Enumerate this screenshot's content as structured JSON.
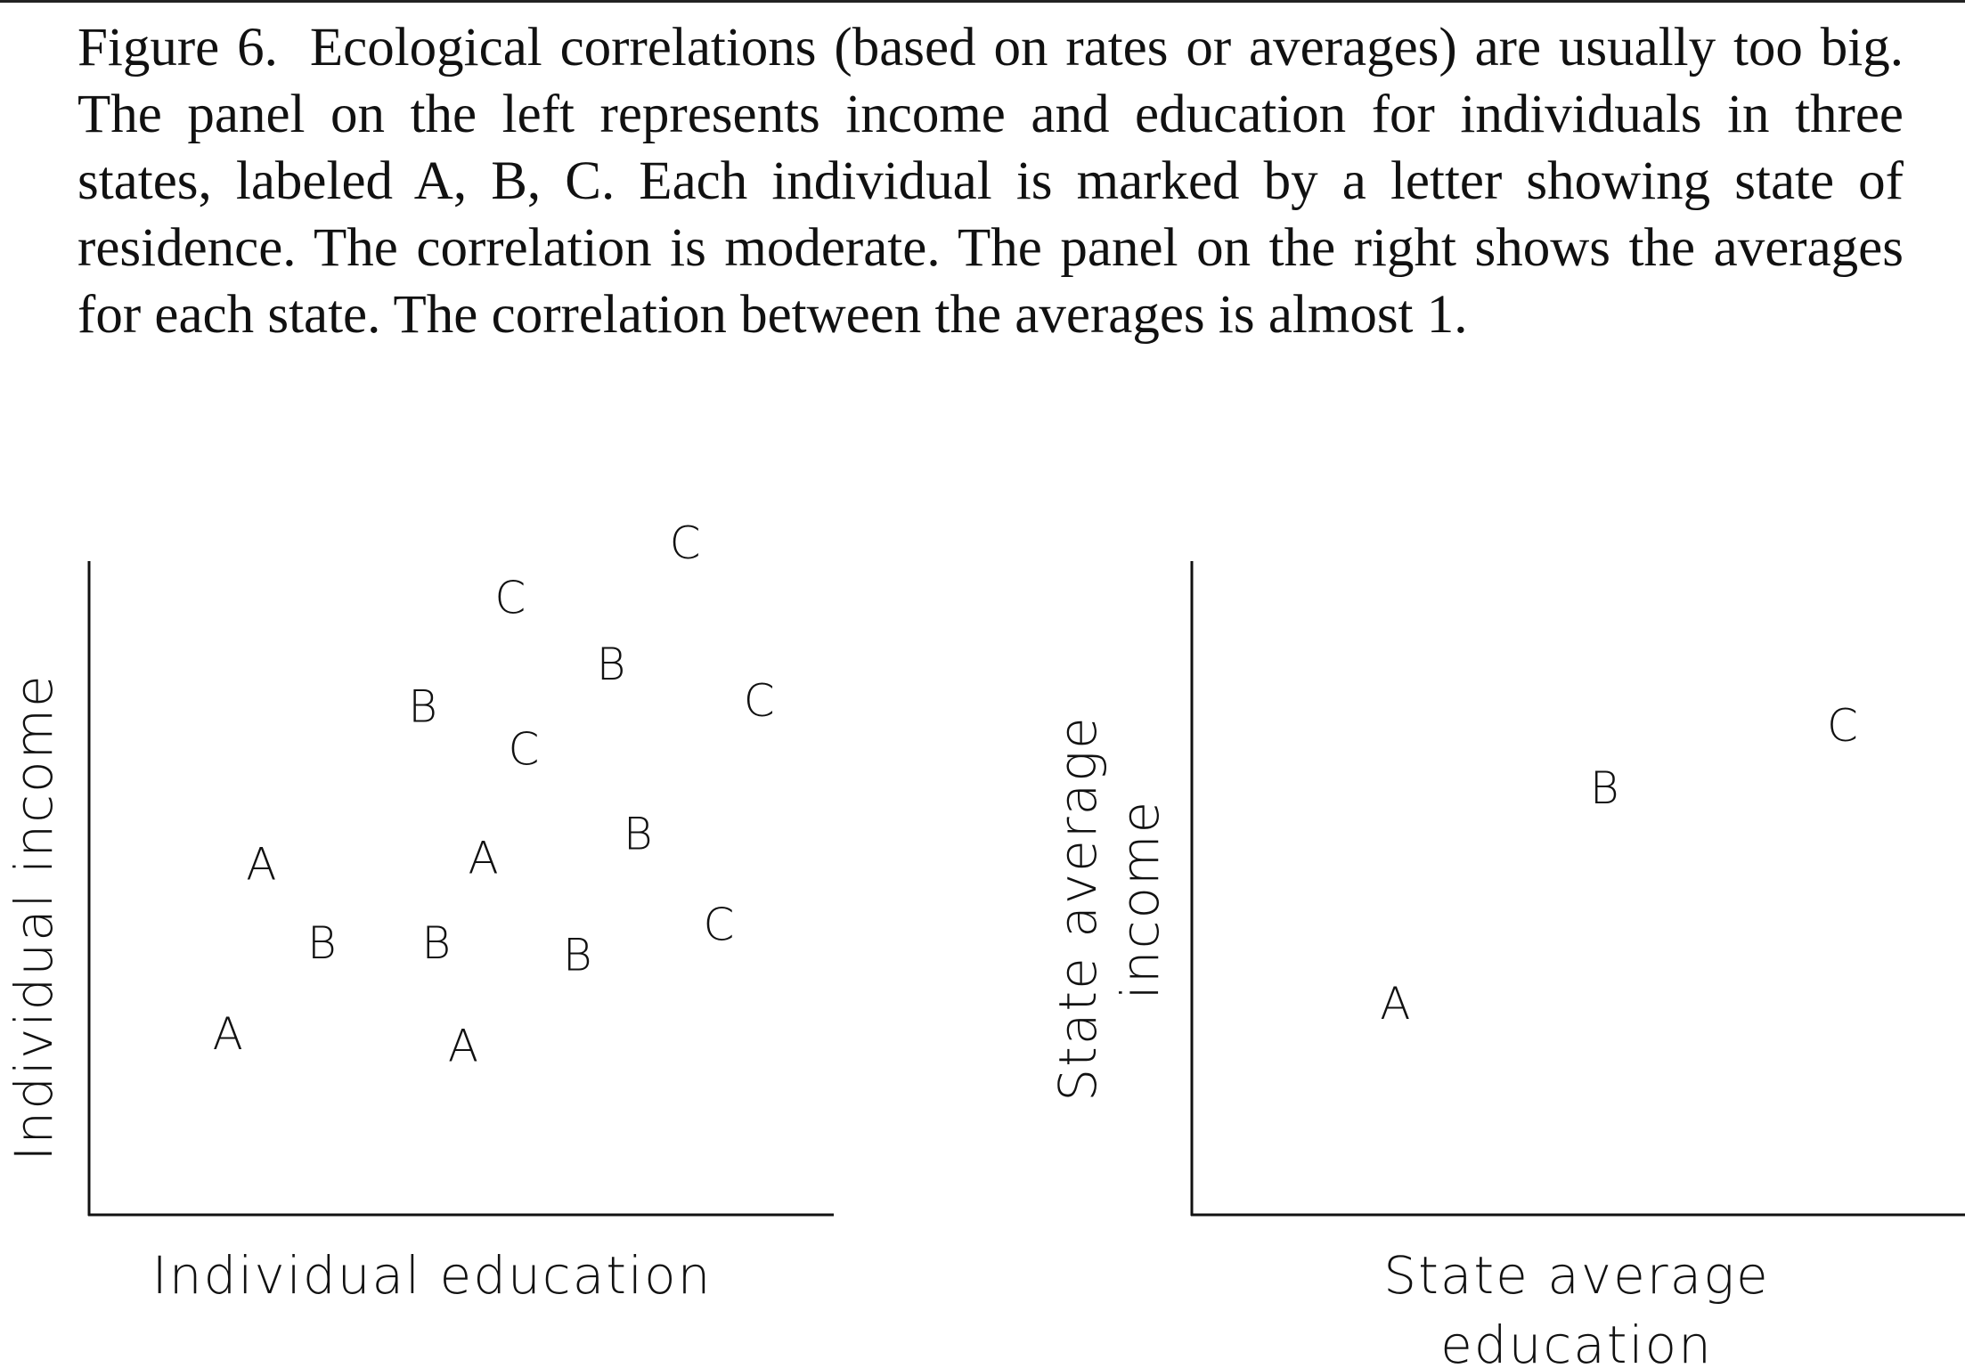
{
  "caption": {
    "label": "Figure 6.",
    "text": "Ecological correlations (based on rates or averages) are usually too big. The panel on the left represents income and education for individuals in three states, labeled A, B, C. Each individual is marked by a letter showing state of residence. The correlation is moderate. The panel on the right shows the averages for each state. The correlation between the averages is almost 1."
  },
  "chart_data": [
    {
      "type": "scatter",
      "panel": "left",
      "xlabel": "Individual education",
      "ylabel": "Individual income",
      "xlim": [
        0,
        100
      ],
      "ylim": [
        0,
        100
      ],
      "points": [
        {
          "label": "A",
          "x": 14,
          "y": 17
        },
        {
          "label": "A",
          "x": 19,
          "y": 45
        },
        {
          "label": "B",
          "x": 28,
          "y": 32
        },
        {
          "label": "B",
          "x": 45,
          "y": 32
        },
        {
          "label": "A",
          "x": 49,
          "y": 15
        },
        {
          "label": "A",
          "x": 52,
          "y": 46
        },
        {
          "label": "B",
          "x": 43,
          "y": 71
        },
        {
          "label": "C",
          "x": 56,
          "y": 89
        },
        {
          "label": "C",
          "x": 58,
          "y": 64
        },
        {
          "label": "B",
          "x": 66,
          "y": 30
        },
        {
          "label": "B",
          "x": 71,
          "y": 78
        },
        {
          "label": "B",
          "x": 75,
          "y": 50
        },
        {
          "label": "C",
          "x": 82,
          "y": 98
        },
        {
          "label": "C",
          "x": 87,
          "y": 35
        },
        {
          "label": "C",
          "x": 93,
          "y": 72
        }
      ]
    },
    {
      "type": "scatter",
      "panel": "right",
      "xlabel_lines": [
        "State average",
        "education"
      ],
      "ylabel_lines": [
        "State average",
        "income"
      ],
      "xlim": [
        0,
        100
      ],
      "ylim": [
        0,
        100
      ],
      "points": [
        {
          "label": "A",
          "x": 23,
          "y": 32
        },
        {
          "label": "B",
          "x": 52,
          "y": 63
        },
        {
          "label": "C",
          "x": 85,
          "y": 72
        }
      ]
    }
  ]
}
